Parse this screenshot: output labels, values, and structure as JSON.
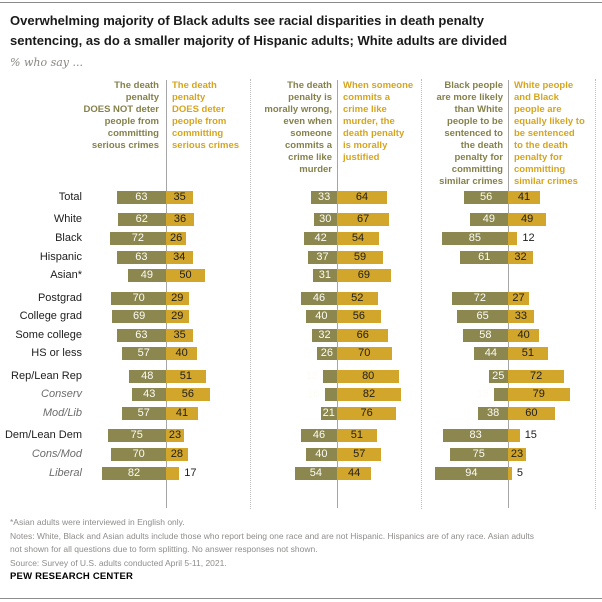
{
  "header": {
    "title": "Overwhelming majority of Black adults see racial disparities in death penalty\nsentencing, as do a smaller majority of Hispanic adults; White adults are divided",
    "subtitle": "% who say ..."
  },
  "chart_data": {
    "type": "bar",
    "orientation": "horizontal-paired",
    "unit": "%",
    "colors": {
      "left_bar": "#8b874f",
      "right_bar": "#d2a52b"
    },
    "panels": [
      {
        "left_label": "The death\npenalty\nDOES NOT deter\npeople from\ncommitting\nserious crimes",
        "right_label": "The death\npenalty\nDOES deter\npeople from\ncommitting\nserious crimes"
      },
      {
        "left_label": "The death\npenalty is\nmorally wrong,\neven when\nsomeone\ncommits a\ncrime like\nmurder",
        "right_label": "When someone\ncommits a\ncrime like\nmurder, the\ndeath penalty\nis morally\njustified"
      },
      {
        "left_label": "Black people\nare more likely\nthan White\npeople to be\nsentenced to\nthe death\npenalty for\ncommitting\nsimilar crimes",
        "right_label": "White people\nand Black\npeople are\nequally likely to\nbe sentenced\nto the death\npenalty for\ncommitting\nsimilar crimes"
      }
    ],
    "rows": [
      {
        "label": "Total",
        "italic": false,
        "group_start": false,
        "values": [
          [
            63,
            35
          ],
          [
            33,
            64
          ],
          [
            56,
            41
          ]
        ]
      },
      {
        "label": "White",
        "italic": false,
        "group_start": true,
        "values": [
          [
            62,
            36
          ],
          [
            30,
            67
          ],
          [
            49,
            49
          ]
        ]
      },
      {
        "label": "Black",
        "italic": false,
        "group_start": false,
        "values": [
          [
            72,
            26
          ],
          [
            42,
            54
          ],
          [
            85,
            12
          ]
        ]
      },
      {
        "label": "Hispanic",
        "italic": false,
        "group_start": false,
        "values": [
          [
            63,
            34
          ],
          [
            37,
            59
          ],
          [
            61,
            32
          ]
        ]
      },
      {
        "label": "Asian*",
        "italic": false,
        "group_start": false,
        "values": [
          [
            49,
            50
          ],
          [
            31,
            69
          ],
          null
        ]
      },
      {
        "label": "Postgrad",
        "italic": false,
        "group_start": true,
        "values": [
          [
            70,
            29
          ],
          [
            46,
            52
          ],
          [
            72,
            27
          ]
        ]
      },
      {
        "label": "College grad",
        "italic": false,
        "group_start": false,
        "values": [
          [
            69,
            29
          ],
          [
            40,
            56
          ],
          [
            65,
            33
          ]
        ]
      },
      {
        "label": "Some college",
        "italic": false,
        "group_start": false,
        "values": [
          [
            63,
            35
          ],
          [
            32,
            66
          ],
          [
            58,
            40
          ]
        ]
      },
      {
        "label": "HS or less",
        "italic": false,
        "group_start": false,
        "values": [
          [
            57,
            40
          ],
          [
            26,
            70
          ],
          [
            44,
            51
          ]
        ]
      },
      {
        "label": "Rep/Lean Rep",
        "italic": false,
        "group_start": true,
        "values": [
          [
            48,
            51
          ],
          [
            18,
            80
          ],
          [
            25,
            72
          ]
        ]
      },
      {
        "label": "Conserv",
        "italic": true,
        "group_start": false,
        "values": [
          [
            43,
            56
          ],
          [
            16,
            82
          ],
          [
            18,
            79
          ]
        ]
      },
      {
        "label": "Mod/Lib",
        "italic": true,
        "group_start": false,
        "values": [
          [
            57,
            41
          ],
          [
            21,
            76
          ],
          [
            38,
            60
          ]
        ]
      },
      {
        "label": "Dem/Lean Dem",
        "italic": false,
        "group_start": true,
        "values": [
          [
            75,
            23
          ],
          [
            46,
            51
          ],
          [
            83,
            15
          ]
        ]
      },
      {
        "label": "Cons/Mod",
        "italic": true,
        "group_start": false,
        "values": [
          [
            70,
            28
          ],
          [
            40,
            57
          ],
          [
            75,
            23
          ]
        ]
      },
      {
        "label": "Liberal",
        "italic": true,
        "group_start": false,
        "values": [
          [
            82,
            17
          ],
          [
            54,
            44
          ],
          [
            94,
            5
          ]
        ]
      }
    ]
  },
  "footer": {
    "notes": "*Asian adults were interviewed in English only.\nNotes: White, Black and Asian adults include those who report being one race and are not Hispanic. Hispanics are of any race. Asian adults\nnot shown for all questions due to form splitting. No answer responses not shown.\nSource: Survey of U.S. adults conducted April 5-11, 2021.",
    "brand": "PEW RESEARCH CENTER"
  }
}
